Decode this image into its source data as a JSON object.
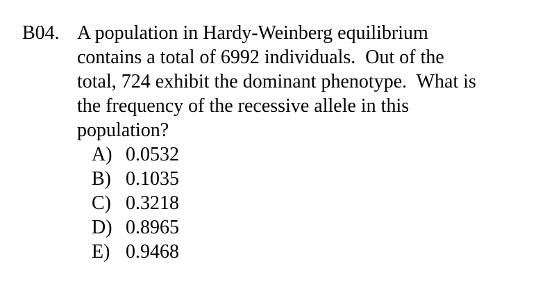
{
  "question": {
    "number": "B04.",
    "stem_lines": [
      "A population in Hardy-Weinberg equilibrium",
      "contains a total of 6992 individuals.  Out of the",
      "total, 724 exhibit the dominant phenotype.  What is",
      "the frequency of the recessive allele in this",
      "population?"
    ],
    "choices": [
      {
        "letter": "A)",
        "value": "0.0532"
      },
      {
        "letter": "B)",
        "value": "0.1035"
      },
      {
        "letter": "C)",
        "value": "0.3218"
      },
      {
        "letter": "D)",
        "value": "0.8965"
      },
      {
        "letter": "E)",
        "value": "0.9468"
      }
    ]
  }
}
